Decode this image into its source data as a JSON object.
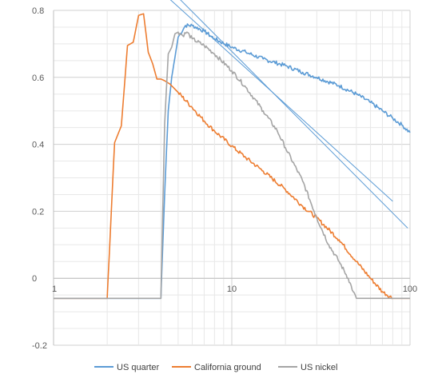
{
  "chart_data": {
    "type": "line",
    "title": "",
    "xlabel": "",
    "ylabel": "",
    "x_scale": "log",
    "xlim": [
      1,
      100
    ],
    "ylim": [
      -0.2,
      0.8
    ],
    "x_tick_labels": [
      "1",
      "10",
      "100"
    ],
    "y_tick_labels": [
      "0.8",
      "0.6",
      "0.4",
      "0.2",
      "0",
      "-0.2"
    ],
    "grid": true,
    "legend_position": "bottom",
    "series": [
      {
        "name": "US quarter",
        "color": "#5B9BD5",
        "x": [
          1,
          4,
          4.2,
          4.4,
          4.6,
          4.8,
          5,
          5.5,
          6,
          7,
          8,
          10,
          12,
          15,
          20,
          25,
          30,
          40,
          50,
          60,
          70,
          80,
          90,
          100
        ],
        "y": [
          -0.06,
          -0.06,
          0.25,
          0.5,
          0.6,
          0.66,
          0.72,
          0.755,
          0.755,
          0.738,
          0.715,
          0.69,
          0.675,
          0.655,
          0.635,
          0.615,
          0.6,
          0.575,
          0.55,
          0.525,
          0.5,
          0.478,
          0.458,
          0.435
        ]
      },
      {
        "name": "California ground",
        "color": "#ED7D31",
        "x": [
          1,
          2,
          2.2,
          2.4,
          2.6,
          2.8,
          3,
          3.2,
          3.4,
          3.6,
          3.8,
          4,
          4.2,
          4.5,
          5,
          6,
          7,
          8,
          10,
          12,
          15,
          20,
          25,
          30,
          40,
          50,
          60,
          70,
          80,
          90,
          100
        ],
        "y": [
          -0.06,
          -0.06,
          0.405,
          0.455,
          0.695,
          0.705,
          0.785,
          0.79,
          0.675,
          0.64,
          0.595,
          0.595,
          0.59,
          0.58,
          0.555,
          0.51,
          0.47,
          0.44,
          0.395,
          0.36,
          0.32,
          0.265,
          0.215,
          0.18,
          0.115,
          0.05,
          0.0,
          -0.04,
          -0.06,
          -0.06,
          -0.06
        ]
      },
      {
        "name": "US  nickel",
        "color": "#A5A5A5",
        "x": [
          1,
          4,
          4.2,
          4.4,
          4.6,
          4.8,
          5,
          5.3,
          5.6,
          6,
          7,
          8,
          10,
          12,
          15,
          18,
          20,
          25,
          30,
          35,
          40,
          45,
          48,
          50,
          52,
          60,
          80,
          100
        ],
        "y": [
          -0.06,
          -0.06,
          0.46,
          0.67,
          0.69,
          0.73,
          0.735,
          0.725,
          0.735,
          0.715,
          0.695,
          0.67,
          0.62,
          0.57,
          0.5,
          0.44,
          0.39,
          0.29,
          0.18,
          0.1,
          0.05,
          0.0,
          -0.04,
          -0.06,
          -0.06,
          -0.06,
          -0.06,
          -0.06
        ]
      }
    ],
    "reference_lines": [
      {
        "color": "#5B9BD5",
        "x": [
          2.9,
          80
        ],
        "y": [
          0.925,
          0.23
        ]
      },
      {
        "color": "#5B9BD5",
        "x": [
          2.9,
          97
        ],
        "y": [
          0.965,
          0.15
        ]
      }
    ]
  }
}
